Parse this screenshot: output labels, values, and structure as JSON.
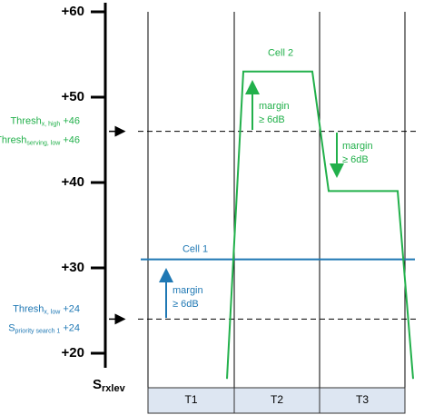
{
  "chart_data": {
    "type": "line",
    "y_axis_label": "S",
    "y_axis_label_sub": "rxlev",
    "ylim": [
      20,
      60
    ],
    "yticks": [
      {
        "value": 20,
        "label": "+20"
      },
      {
        "value": 30,
        "label": "+30"
      },
      {
        "value": 40,
        "label": "+40"
      },
      {
        "value": 50,
        "label": "+50"
      },
      {
        "value": 60,
        "label": "+60"
      }
    ],
    "intervals": [
      "T1",
      "T2",
      "T3"
    ],
    "series": [
      {
        "name": "Cell 1",
        "color": "#1f78b4",
        "values": [
          31
        ]
      },
      {
        "name": "Cell 2",
        "color": "#22b04b",
        "values": [
          17,
          53,
          53,
          39,
          39,
          17
        ]
      }
    ],
    "thresholds": [
      {
        "value": 46,
        "color": "#22b04b",
        "lines": [
          {
            "text": "Thresh",
            "sub": "x, high",
            "suffix": "+46"
          },
          {
            "text": "Thresh",
            "sub": "serving, low",
            "suffix": "+46"
          }
        ]
      },
      {
        "value": 24,
        "color": "#1f78b4",
        "lines": [
          {
            "text": "Thresh",
            "sub": "x, low",
            "suffix": "+24"
          },
          {
            "text": "S",
            "sub": "priority search 1",
            "suffix": "+24"
          }
        ]
      }
    ],
    "annotations": [
      {
        "lines": [
          "margin",
          "≥ 6dB"
        ],
        "color": "#22b04b"
      },
      {
        "lines": [
          "margin",
          "≥ 6dB"
        ],
        "color": "#22b04b"
      },
      {
        "lines": [
          "margin",
          "≥ 6dB"
        ],
        "color": "#1f78b4"
      }
    ]
  }
}
